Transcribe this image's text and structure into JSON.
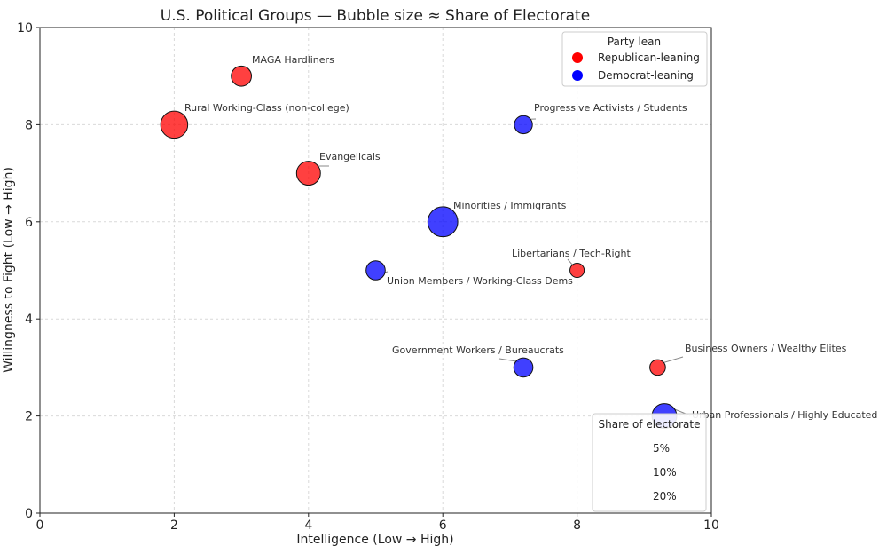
{
  "chart_data": {
    "type": "scatter",
    "title": "U.S. Political Groups — Bubble size ≈ Share of Electorate",
    "xlabel": "Intelligence (Low → High)",
    "ylabel": "Willingness to Fight (Low → High)",
    "xlim": [
      0,
      10
    ],
    "ylim": [
      0,
      10
    ],
    "xticks": [
      "0",
      "2",
      "4",
      "6",
      "8",
      "10"
    ],
    "yticks": [
      "0",
      "2",
      "4",
      "6",
      "8",
      "10"
    ],
    "grid": true,
    "points": [
      {
        "label": "MAGA Hardliners",
        "x": 3,
        "y": 9,
        "lean": "Republican-leaning",
        "share": 10
      },
      {
        "label": "Rural Working-Class (non-college)",
        "x": 2,
        "y": 8,
        "lean": "Republican-leaning",
        "share": 18
      },
      {
        "label": "Evangelicals",
        "x": 4,
        "y": 7,
        "lean": "Republican-leaning",
        "share": 14
      },
      {
        "label": "Progressive Activists / Students",
        "x": 7.2,
        "y": 8,
        "lean": "Democrat-leaning",
        "share": 8
      },
      {
        "label": "Minorities / Immigrants",
        "x": 6,
        "y": 6,
        "lean": "Democrat-leaning",
        "share": 22
      },
      {
        "label": "Libertarians / Tech-Right",
        "x": 8,
        "y": 5,
        "lean": "Republican-leaning",
        "share": 5
      },
      {
        "label": "Union Members / Working-Class Dems",
        "x": 5,
        "y": 5,
        "lean": "Democrat-leaning",
        "share": 9
      },
      {
        "label": "Government Workers / Bureaucrats",
        "x": 7.2,
        "y": 3,
        "lean": "Democrat-leaning",
        "share": 9
      },
      {
        "label": "Business Owners / Wealthy Elites",
        "x": 9.2,
        "y": 3,
        "lean": "Republican-leaning",
        "share": 6
      },
      {
        "label": "Urban Professionals / Highly Educated",
        "x": 9.3,
        "y": 2,
        "lean": "Democrat-leaning",
        "share": 15
      }
    ],
    "legend_lean": {
      "title": "Party lean",
      "placement": "top-right",
      "entries": [
        {
          "name": "Republican-leaning",
          "color": "#ff0000"
        },
        {
          "name": "Democrat-leaning",
          "color": "#0000ff"
        }
      ]
    },
    "legend_size": {
      "title": "Share of electorate",
      "placement": "lower-right",
      "entries": [
        "5%",
        "10%",
        "20%"
      ]
    }
  }
}
